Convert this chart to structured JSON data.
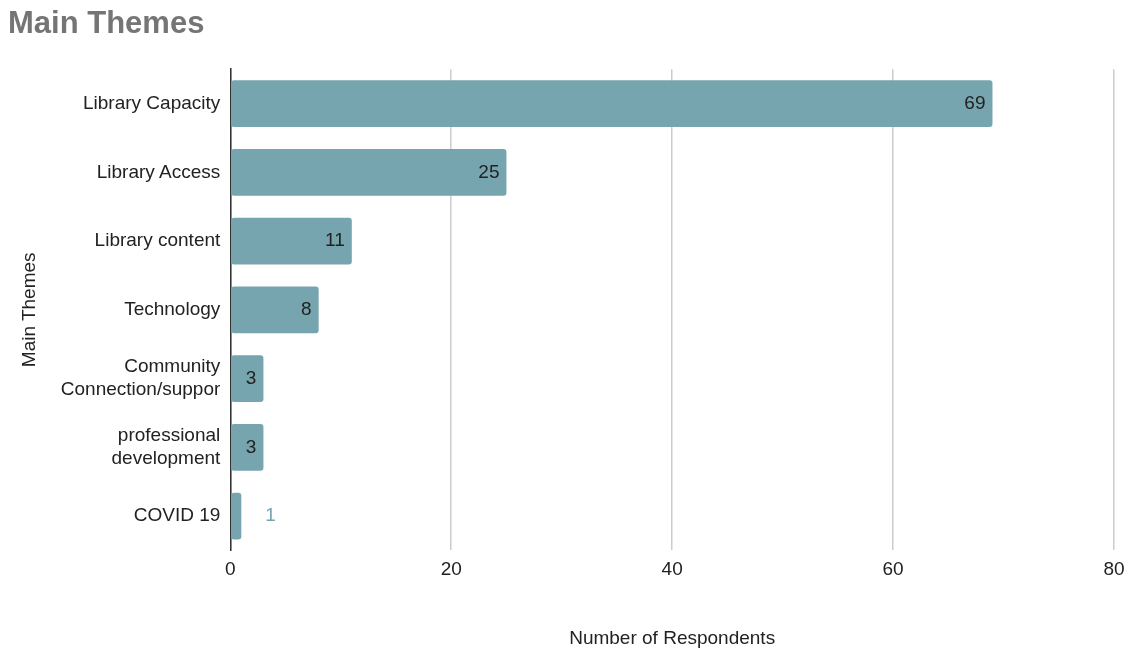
{
  "chart_data": {
    "type": "bar",
    "orientation": "horizontal",
    "title": "Main Themes",
    "xlabel": "Number of Respondents",
    "ylabel": "Main Themes",
    "categories": [
      "Library Capacity",
      "Library Access",
      "Library content",
      "Technology",
      "Community Connection/suppor",
      "professional development",
      "COVID 19"
    ],
    "values": [
      69,
      25,
      11,
      8,
      3,
      3,
      1
    ],
    "color": "#76a5af",
    "xlim": [
      0,
      80
    ],
    "xticks": [
      0,
      20,
      40,
      60,
      80
    ],
    "grid": "x",
    "legend": false,
    "data_labels": true
  }
}
